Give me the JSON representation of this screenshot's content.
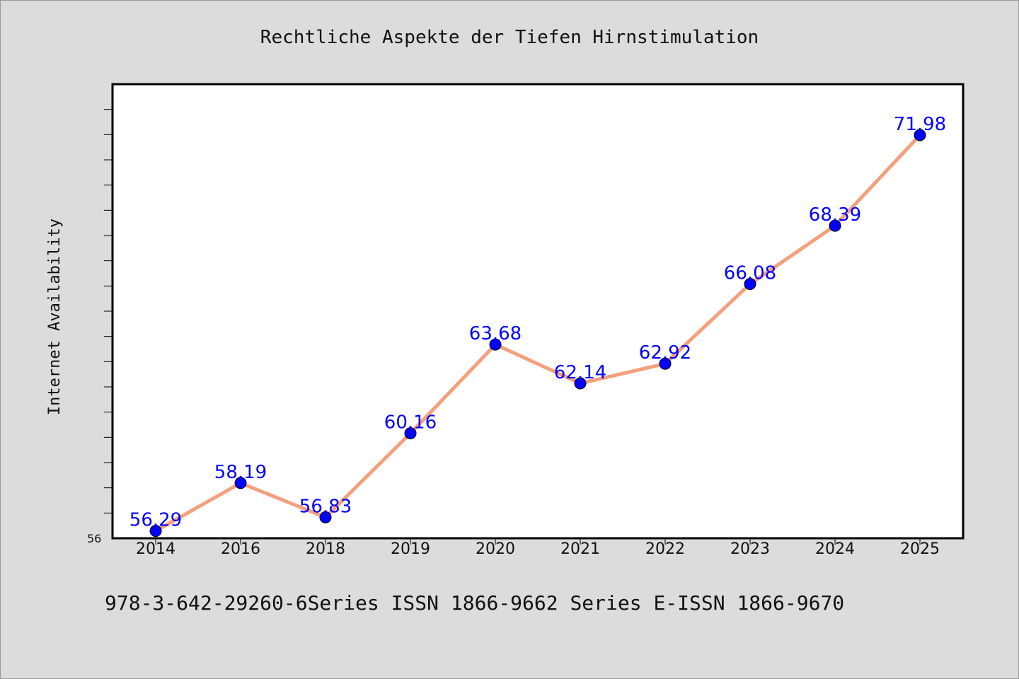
{
  "chart_data": {
    "type": "line",
    "title": "Rechtliche Aspekte der Tiefen Hirnstimulation",
    "xlabel": "",
    "ylabel": "Internet Availability",
    "categories": [
      "2014",
      "2016",
      "2018",
      "2019",
      "2020",
      "2021",
      "2022",
      "2023",
      "2024",
      "2025"
    ],
    "series": [
      {
        "values": [
          56.29,
          58.19,
          56.83,
          60.16,
          63.68,
          62.14,
          62.92,
          66.08,
          68.39,
          71.98
        ]
      }
    ],
    "data_labels": [
      "56.29",
      "58.19",
      "56.83",
      "60.16",
      "63.68",
      "62.14",
      "62.92",
      "66.08",
      "68.39",
      "71.98"
    ],
    "ytick_labels": [
      "56"
    ],
    "ylim": [
      56,
      74
    ],
    "grid": false,
    "line_color": "#f4a07c",
    "marker_color": "#0000ff",
    "label_color": "#0000ff"
  },
  "footer": "978-3-642-29260-6Series ISSN 1866-9662 Series E-ISSN 1866-9670"
}
